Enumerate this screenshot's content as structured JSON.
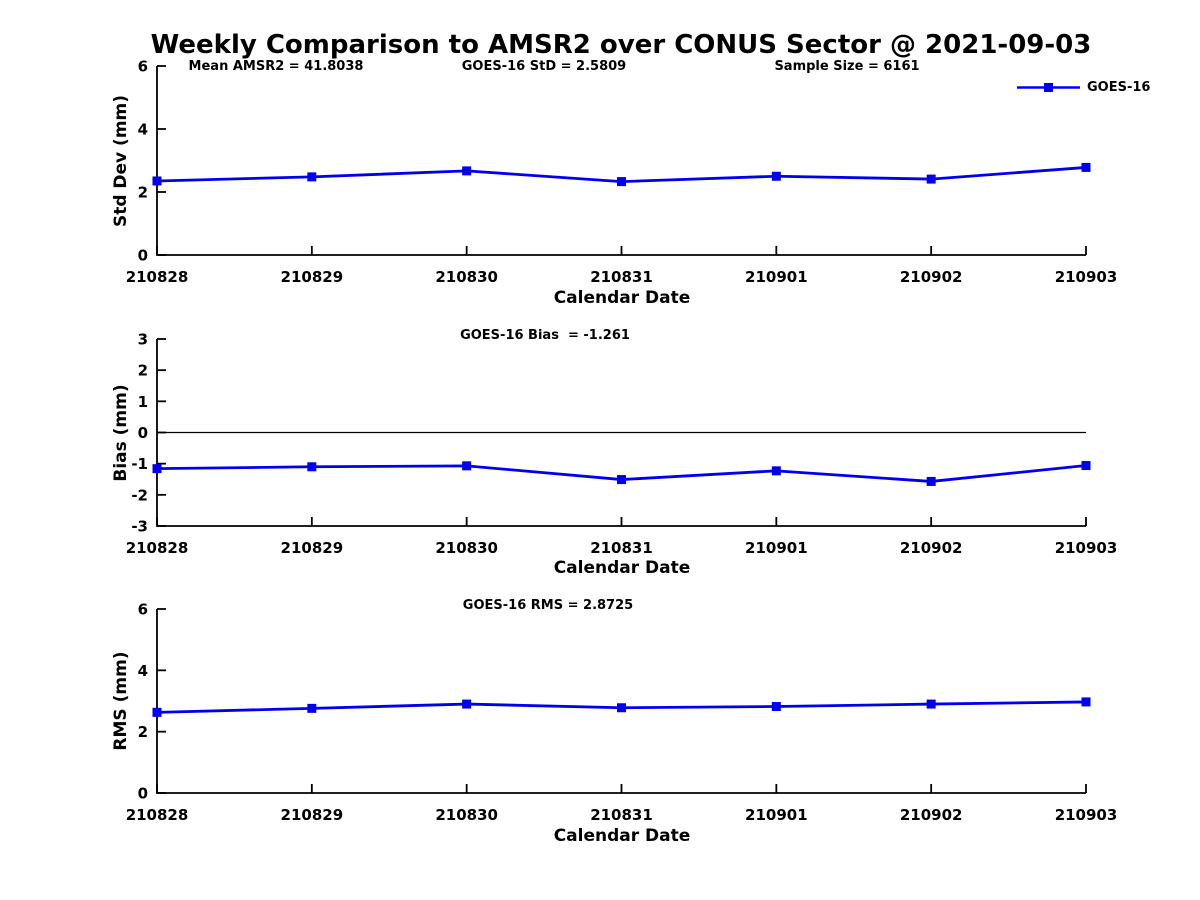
{
  "figure": {
    "title": "Weekly Comparison to AMSR2 over CONUS Sector @ 2021-09-03",
    "series_color": "#0000EE",
    "axis_color": "#000000",
    "legend": {
      "label": "GOES-16"
    }
  },
  "chart_data": [
    {
      "type": "line",
      "name": "std-dev",
      "ylabel": "Std Dev (mm)",
      "xlabel": "Calendar Date",
      "categories": [
        "210828",
        "210829",
        "210830",
        "210831",
        "210901",
        "210902",
        "210903"
      ],
      "series": [
        {
          "name": "GOES-16",
          "values": [
            2.35,
            2.48,
            2.67,
            2.33,
            2.5,
            2.41,
            2.78
          ]
        }
      ],
      "ylim": [
        0,
        6
      ],
      "yticks": [
        0,
        2,
        4,
        6
      ],
      "grid": false,
      "legend_position": "top-right",
      "annotations": [
        {
          "text": "Mean AMSR2 = 41.8038"
        },
        {
          "text": "GOES-16 StD = 2.5809"
        },
        {
          "text": "Sample Size = 6161"
        }
      ]
    },
    {
      "type": "line",
      "name": "bias",
      "ylabel": "Bias (mm)",
      "xlabel": "Calendar Date",
      "categories": [
        "210828",
        "210829",
        "210830",
        "210831",
        "210901",
        "210902",
        "210903"
      ],
      "series": [
        {
          "name": "GOES-16",
          "values": [
            -1.16,
            -1.1,
            -1.07,
            -1.51,
            -1.23,
            -1.57,
            -1.06
          ]
        }
      ],
      "ylim": [
        -3,
        3
      ],
      "yticks": [
        3,
        2,
        1,
        0,
        -1,
        -2,
        -3
      ],
      "zero_line": true,
      "grid": false,
      "annotations": [
        {
          "text": "GOES-16 Bias  = -1.261"
        }
      ]
    },
    {
      "type": "line",
      "name": "rms",
      "ylabel": "RMS (mm)",
      "xlabel": "Calendar Date",
      "categories": [
        "210828",
        "210829",
        "210830",
        "210831",
        "210901",
        "210902",
        "210903"
      ],
      "series": [
        {
          "name": "GOES-16",
          "values": [
            2.63,
            2.76,
            2.9,
            2.78,
            2.82,
            2.9,
            2.97
          ]
        }
      ],
      "ylim": [
        0,
        6
      ],
      "yticks": [
        0,
        2,
        4,
        6
      ],
      "grid": false,
      "annotations": [
        {
          "text": "GOES-16 RMS = 2.8725"
        }
      ]
    }
  ]
}
